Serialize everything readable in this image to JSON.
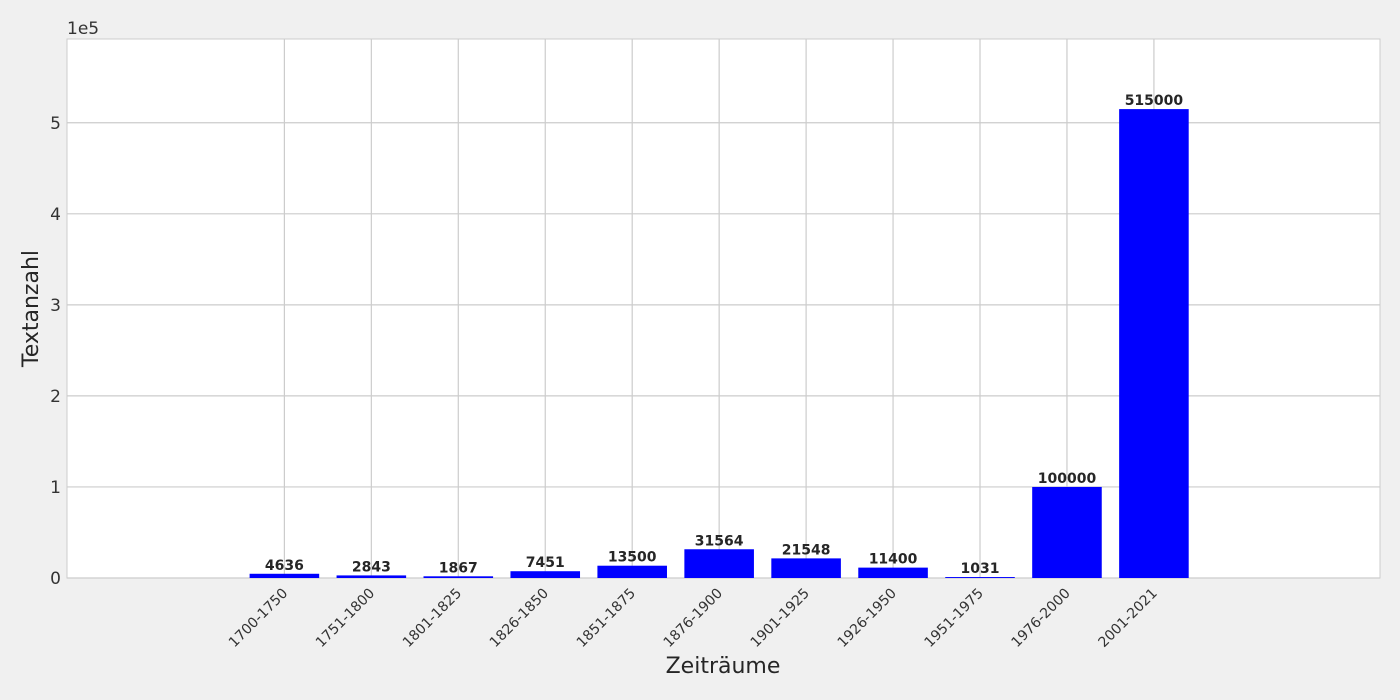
{
  "chart_data": {
    "type": "bar",
    "categories": [
      "1700-1750",
      "1751-1800",
      "1801-1825",
      "1826-1850",
      "1851-1875",
      "1876-1900",
      "1901-1925",
      "1926-1950",
      "1951-1975",
      "1976-2000",
      "2001-2021"
    ],
    "values": [
      4636,
      2843,
      1867,
      7451,
      13500,
      31564,
      21548,
      11400,
      1031,
      100000,
      515000
    ],
    "data_labels": [
      "4636",
      "2843",
      "1867",
      "7451",
      "13500",
      "31564",
      "21548",
      "11400",
      "1031",
      "100000",
      "515000"
    ],
    "xlabel": "Zeiträume",
    "ylabel": "Textanzahl",
    "y_offset_label": "1e5",
    "ylim": [
      0,
      592000
    ],
    "xlim": [
      -2.5,
      12.6
    ],
    "y_ticks": [
      0,
      100000,
      200000,
      300000,
      400000,
      500000
    ],
    "y_tick_labels": [
      "0",
      "1",
      "2",
      "3",
      "4",
      "5"
    ],
    "grid": true,
    "bar_color": "#0000ff",
    "background_color": "#f0f0f0",
    "plot_background_color": "#ffffff",
    "grid_color": "#cccccc"
  }
}
